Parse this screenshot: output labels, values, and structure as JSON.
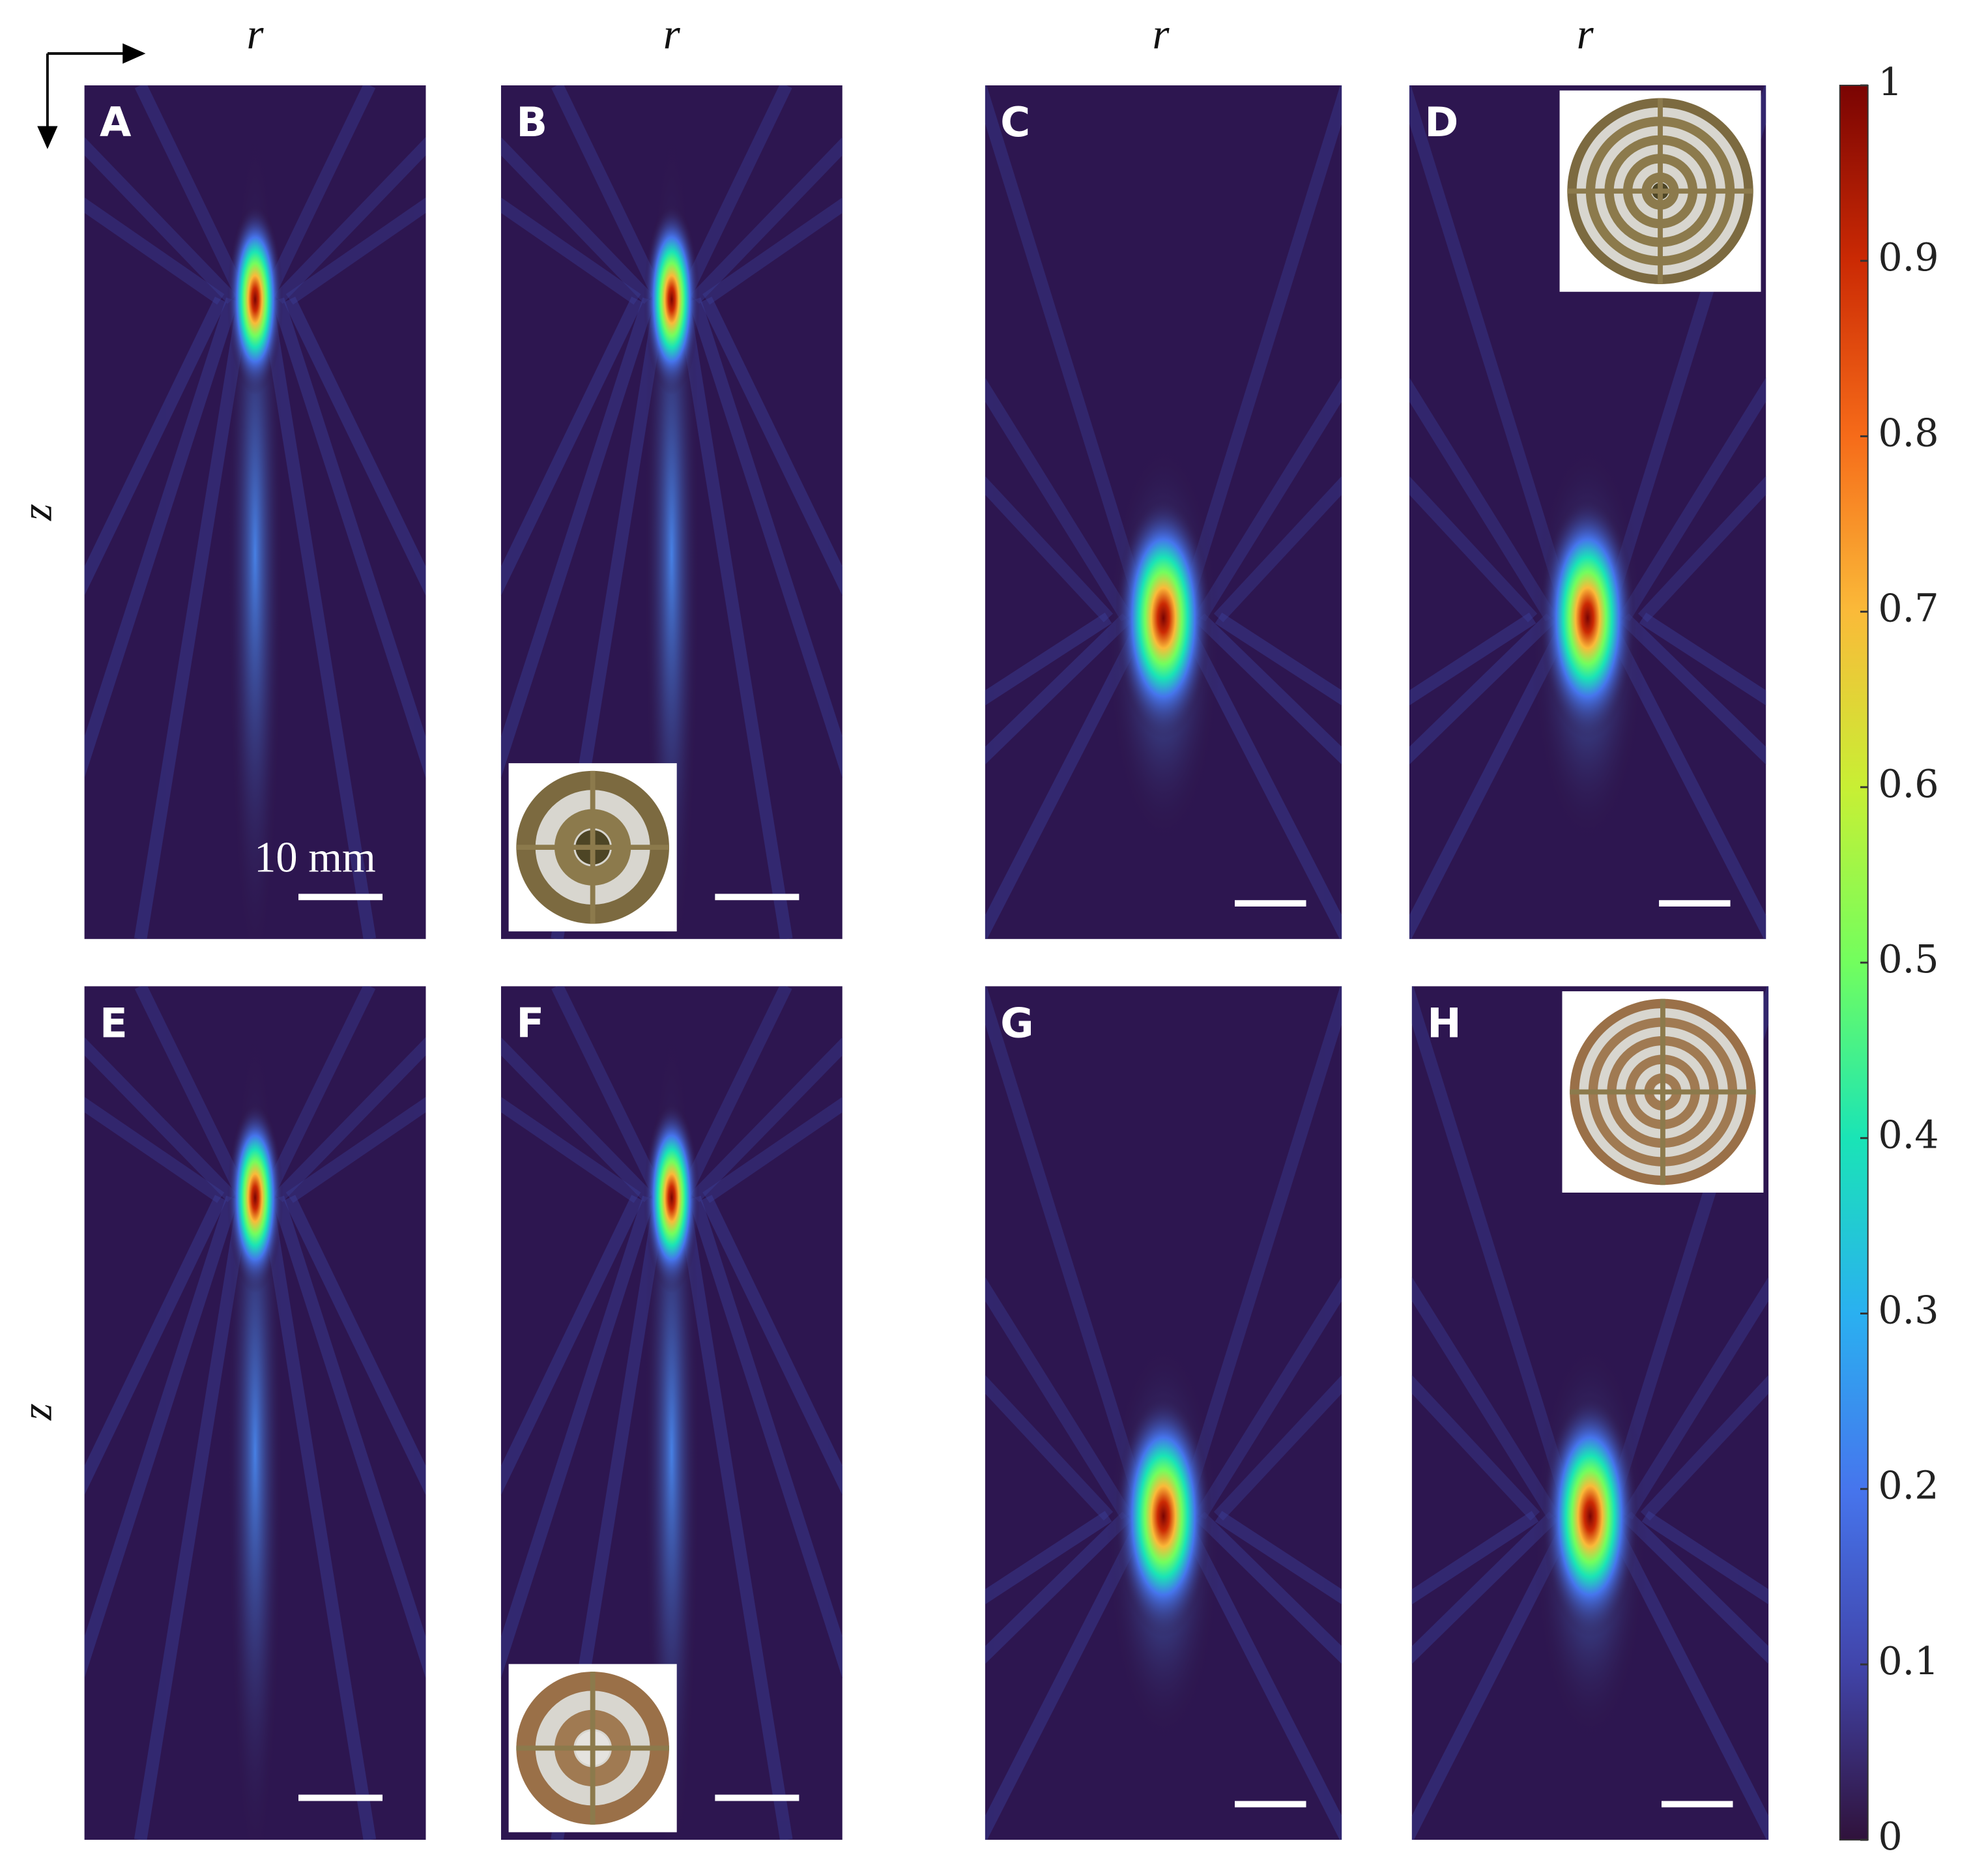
{
  "panels": [
    {
      "label": "A"
    },
    {
      "label": "B"
    },
    {
      "label": "C"
    },
    {
      "label": "D"
    },
    {
      "label": "E"
    },
    {
      "label": "F"
    },
    {
      "label": "G"
    },
    {
      "label": "H"
    }
  ],
  "axis_labels": {
    "r": [
      "r",
      "r",
      "r",
      "r"
    ],
    "z": [
      "z",
      "z"
    ]
  },
  "scale_label": "10 mm",
  "colorbar": {
    "lim": [
      0,
      1
    ],
    "ticks": [
      0,
      0.1,
      0.2,
      0.3,
      0.4,
      0.5,
      0.6,
      0.7,
      0.8,
      0.9,
      1
    ]
  }
}
